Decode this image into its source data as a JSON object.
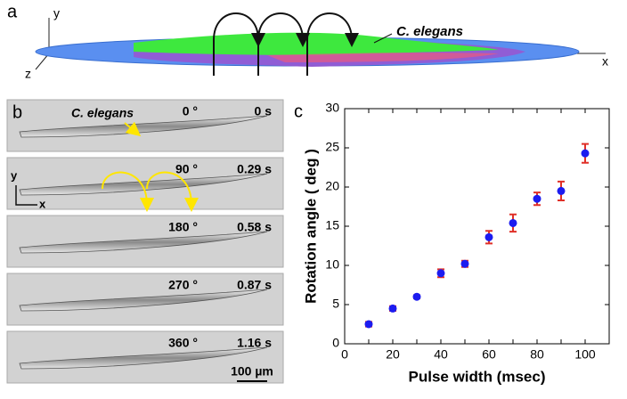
{
  "panel_a": {
    "label": "a",
    "axis_y": "y",
    "axis_z": "z",
    "axis_x": "x",
    "annotation": "C. elegans"
  },
  "panel_b": {
    "label": "b",
    "annotation": "C. elegans",
    "axis_y": "y",
    "axis_x": "x",
    "scale_bar": "100 µm",
    "frames": [
      {
        "angle": "0 °",
        "time": "0 s"
      },
      {
        "angle": "90 °",
        "time": "0.29 s"
      },
      {
        "angle": "180 °",
        "time": "0.58 s"
      },
      {
        "angle": "270 °",
        "time": "0.87 s"
      },
      {
        "angle": "360 °",
        "time": "1.16 s"
      }
    ]
  },
  "chart_data": {
    "type": "scatter",
    "label": "c",
    "x_label": "Pulse width (msec)",
    "y_label": "Rotation angle ( deg )",
    "x": [
      10,
      20,
      30,
      40,
      50,
      60,
      70,
      80,
      90,
      100
    ],
    "values": [
      2.5,
      4.5,
      6.0,
      9.0,
      10.2,
      13.6,
      15.4,
      18.5,
      19.5,
      24.3
    ],
    "errors": [
      0.3,
      0.3,
      0.2,
      0.5,
      0.4,
      0.8,
      1.1,
      0.8,
      1.2,
      1.2
    ],
    "color": "#1c1cf0",
    "error_color": "#e03028",
    "xlim": [
      0,
      110
    ],
    "xticks": [
      0,
      10,
      20,
      30,
      40,
      50,
      60,
      70,
      80,
      90,
      100
    ],
    "ylim": [
      0,
      30
    ],
    "yticks": [
      0,
      5,
      10,
      15,
      20,
      25,
      30
    ]
  }
}
